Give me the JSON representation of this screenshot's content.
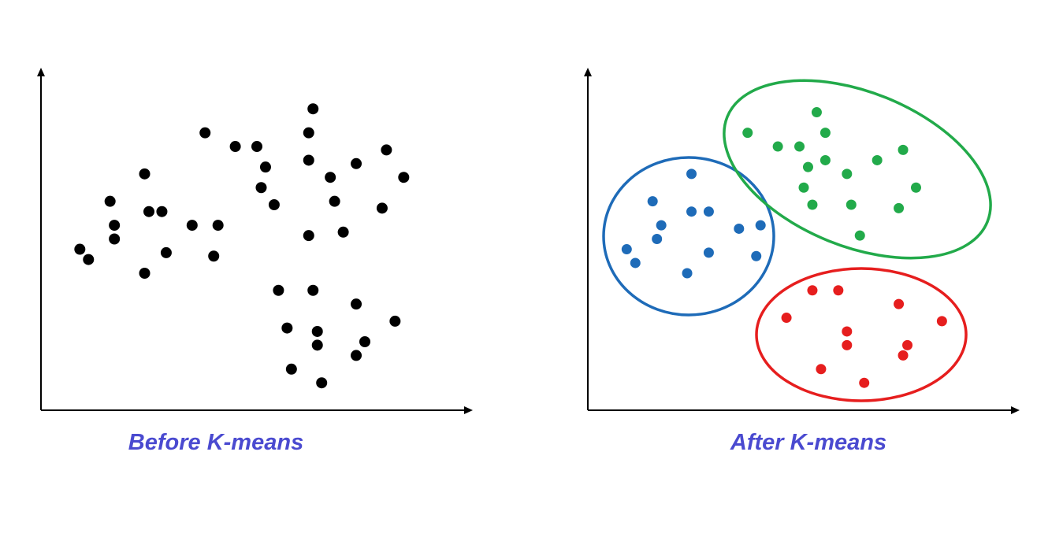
{
  "captions": {
    "before": "Before K-means",
    "after": "After K-means"
  },
  "chart_data": [
    {
      "type": "scatter",
      "title": "Before K-means",
      "xlabel": "",
      "ylabel": "",
      "xlim": [
        0,
        100
      ],
      "ylim": [
        0,
        100
      ],
      "grid": false,
      "series": [
        {
          "color": "#000000",
          "points": [
            [
              9,
              47
            ],
            [
              11,
              44
            ],
            [
              16,
              61
            ],
            [
              17,
              54
            ],
            [
              17,
              50
            ],
            [
              24,
              40
            ],
            [
              24,
              69
            ],
            [
              25,
              58
            ],
            [
              28,
              58
            ],
            [
              29,
              46
            ],
            [
              35,
              54
            ],
            [
              38,
              81
            ],
            [
              40,
              45
            ],
            [
              41,
              54
            ],
            [
              45,
              77
            ],
            [
              50,
              77
            ],
            [
              51,
              65
            ],
            [
              52,
              71
            ],
            [
              54,
              60
            ],
            [
              55,
              35
            ],
            [
              57,
              24
            ],
            [
              58,
              12
            ],
            [
              62,
              73
            ],
            [
              62,
              81
            ],
            [
              62,
              51
            ],
            [
              63,
              88
            ],
            [
              63,
              35
            ],
            [
              64,
              23
            ],
            [
              64,
              19
            ],
            [
              65,
              8
            ],
            [
              67,
              68
            ],
            [
              68,
              61
            ],
            [
              70,
              52
            ],
            [
              73,
              16
            ],
            [
              73,
              72
            ],
            [
              73,
              31
            ],
            [
              75,
              20
            ],
            [
              79,
              59
            ],
            [
              80,
              76
            ],
            [
              82,
              26
            ],
            [
              84,
              68
            ]
          ]
        }
      ]
    },
    {
      "type": "scatter",
      "title": "After K-means",
      "xlabel": "",
      "ylabel": "",
      "xlim": [
        0,
        100
      ],
      "ylim": [
        0,
        100
      ],
      "grid": false,
      "series": [
        {
          "color": "#1e6bb8",
          "points": [
            [
              9,
              47
            ],
            [
              11,
              43
            ],
            [
              15,
              61
            ],
            [
              16,
              50
            ],
            [
              17,
              54
            ],
            [
              23,
              40
            ],
            [
              24,
              69
            ],
            [
              24,
              58
            ],
            [
              28,
              58
            ],
            [
              28,
              46
            ],
            [
              35,
              53
            ],
            [
              39,
              45
            ],
            [
              40,
              54
            ]
          ]
        },
        {
          "color": "#22aa4a",
          "points": [
            [
              37,
              81
            ],
            [
              44,
              77
            ],
            [
              49,
              77
            ],
            [
              50,
              65
            ],
            [
              51,
              71
            ],
            [
              52,
              60
            ],
            [
              53,
              87
            ],
            [
              55,
              81
            ],
            [
              55,
              73
            ],
            [
              60,
              69
            ],
            [
              61,
              60
            ],
            [
              63,
              51
            ],
            [
              67,
              73
            ],
            [
              72,
              59
            ],
            [
              73,
              76
            ],
            [
              76,
              65
            ]
          ]
        },
        {
          "color": "#e61e1e",
          "points": [
            [
              46,
              27
            ],
            [
              52,
              35
            ],
            [
              54,
              12
            ],
            [
              58,
              35
            ],
            [
              60,
              23
            ],
            [
              60,
              19
            ],
            [
              64,
              8
            ],
            [
              72,
              31
            ],
            [
              73,
              16
            ],
            [
              74,
              19
            ],
            [
              82,
              26
            ]
          ]
        }
      ],
      "cluster_outlines": [
        "#1e6bb8",
        "#22aa4a",
        "#e61e1e"
      ]
    }
  ]
}
